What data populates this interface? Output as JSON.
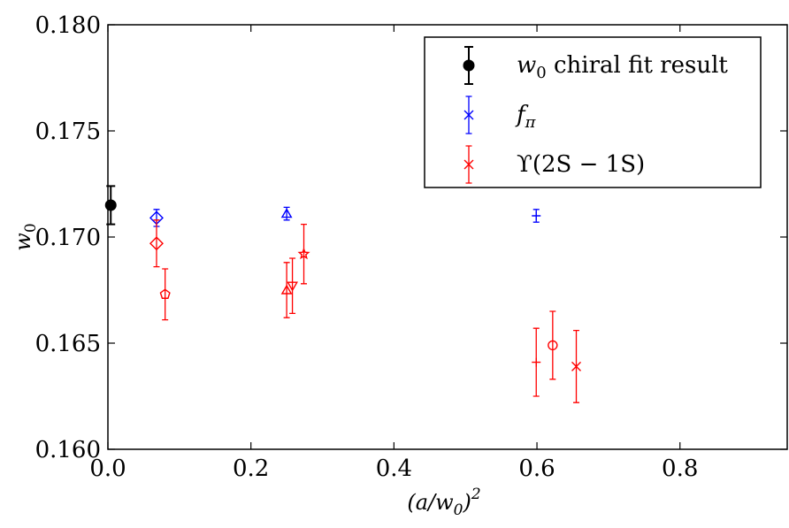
{
  "chart_data": {
    "type": "scatter",
    "title": "",
    "xlabel": "(a/w0)^2",
    "ylabel": "w0",
    "xlim": [
      0.0,
      0.95
    ],
    "ylim": [
      0.16,
      0.18
    ],
    "xticks": [
      "0.0",
      "0.2",
      "0.4",
      "0.6",
      "0.8"
    ],
    "yticks": [
      "0.160",
      "0.165",
      "0.170",
      "0.175",
      "0.180"
    ],
    "grid": false,
    "legend_position": "top-right",
    "series": [
      {
        "name": "w0 chiral fit result",
        "legend_label": "chiral fit result",
        "color": "#000000",
        "marker": "filled-circle",
        "points": [
          {
            "x": 0.004,
            "y": 0.1715,
            "err": 0.0009,
            "marker": "filled-circle"
          }
        ]
      },
      {
        "name": "f_pi",
        "legend_label": "f",
        "color": "#0000ff",
        "marker": "x",
        "points": [
          {
            "x": 0.068,
            "y": 0.1709,
            "err": 0.0004,
            "marker": "diamond"
          },
          {
            "x": 0.25,
            "y": 0.1711,
            "err": 0.0003,
            "marker": "triangle-up"
          },
          {
            "x": 0.599,
            "y": 0.171,
            "err": 0.0003,
            "marker": "plus"
          }
        ]
      },
      {
        "name": "Upsilon(2S-1S)",
        "legend_label": "ϒ(2S − 1S)",
        "color": "#ff0000",
        "marker": "x",
        "points": [
          {
            "x": 0.068,
            "y": 0.1697,
            "err": 0.0011,
            "marker": "diamond"
          },
          {
            "x": 0.08,
            "y": 0.1673,
            "err": 0.0012,
            "marker": "pentagon"
          },
          {
            "x": 0.25,
            "y": 0.1675,
            "err": 0.0013,
            "marker": "triangle-up"
          },
          {
            "x": 0.258,
            "y": 0.1677,
            "err": 0.0013,
            "marker": "triangle-down"
          },
          {
            "x": 0.274,
            "y": 0.1692,
            "err": 0.0014,
            "marker": "star"
          },
          {
            "x": 0.599,
            "y": 0.1641,
            "err": 0.0016,
            "marker": "plus"
          },
          {
            "x": 0.622,
            "y": 0.1649,
            "err": 0.0016,
            "marker": "circle"
          },
          {
            "x": 0.655,
            "y": 0.1639,
            "err": 0.0017,
            "marker": "x"
          }
        ]
      }
    ]
  },
  "legend": {
    "w0_symbol": "w",
    "w0_sub": "0",
    "fpi_symbol": "f",
    "fpi_sub": "π",
    "ups_text": "ϒ(2S − 1S)"
  }
}
